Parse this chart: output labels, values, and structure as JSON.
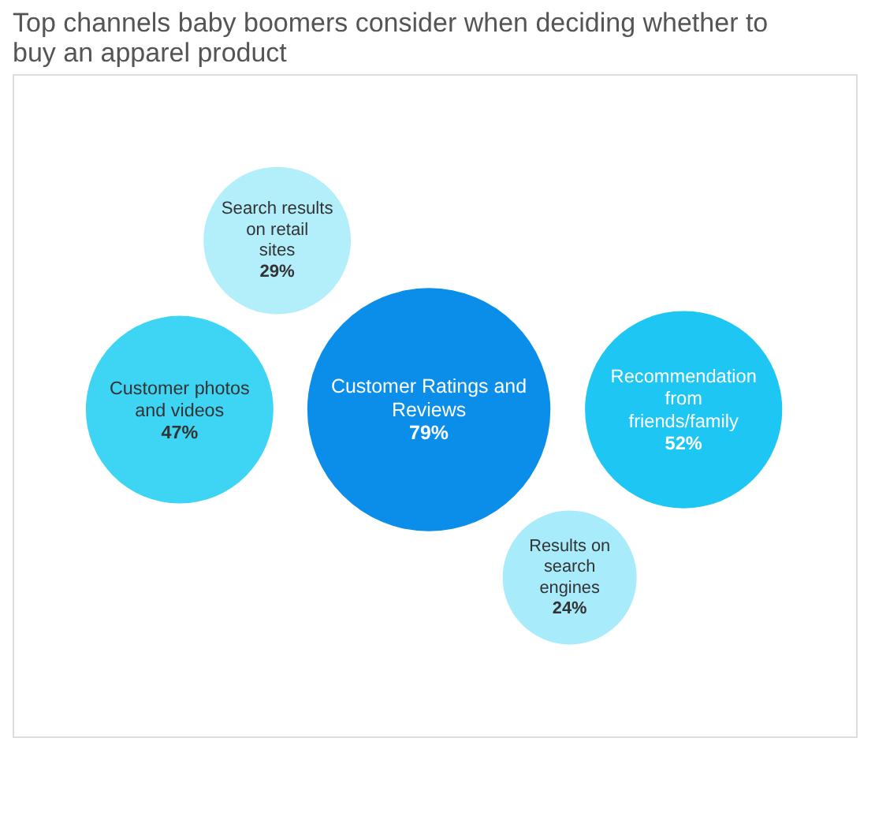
{
  "chart_data": {
    "type": "other",
    "title": "Top channels baby boomers consider when deciding whether to buy an apparel product",
    "categories": [
      "Customer Ratings and Reviews",
      "Recommendation from friends/family",
      "Customer photos and videos",
      "Search results on retail sites",
      "Results on search engines"
    ],
    "values": [
      79,
      52,
      47,
      29,
      24
    ],
    "value_labels": [
      "79%",
      "52%",
      "47%",
      "29%",
      "24%"
    ],
    "colors": [
      "#0a8eea",
      "#1ec6f4",
      "#3ed5f5",
      "#b3eefb",
      "#a8ebfb"
    ]
  }
}
